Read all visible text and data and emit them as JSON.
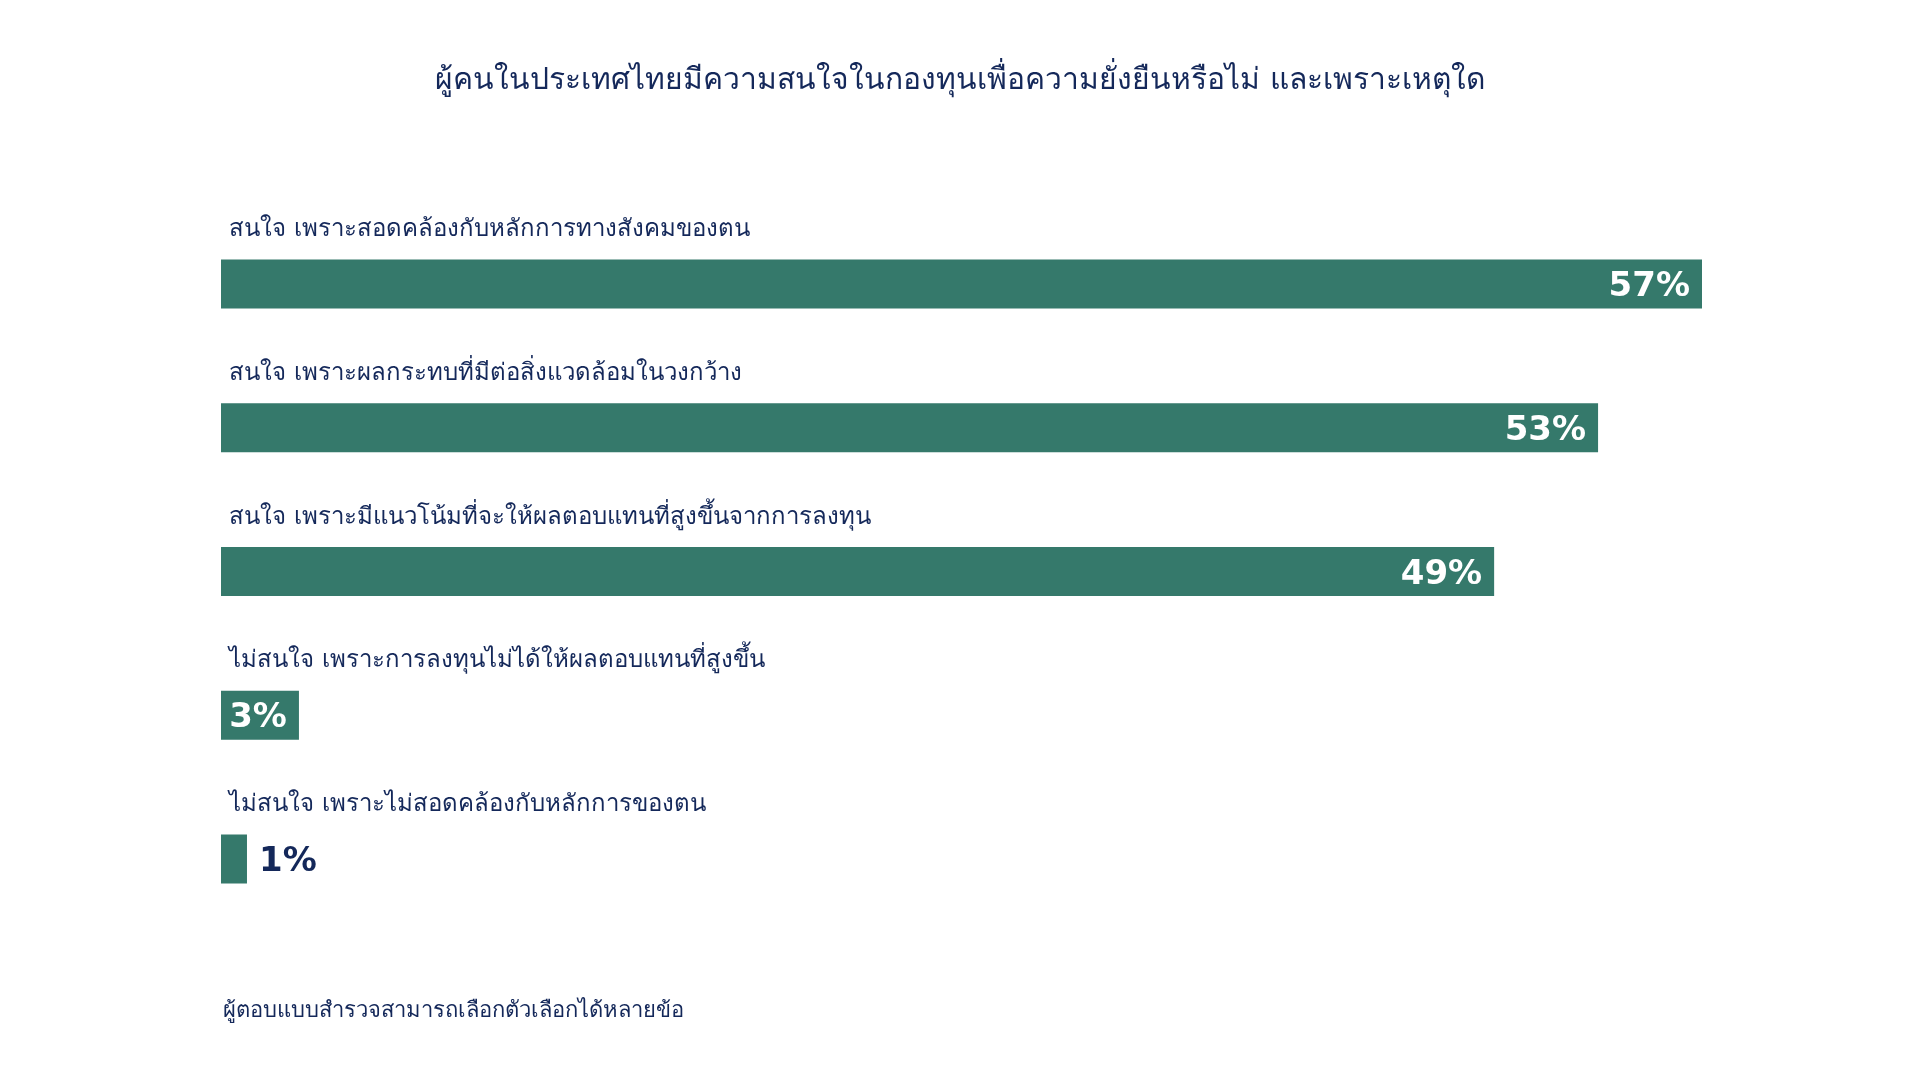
{
  "chart_data": {
    "type": "bar",
    "orientation": "horizontal",
    "title": "ผู้คนในประเทศไทยมีความสนใจในกองทุนเพื่อความยั่งยืนหรือไม่ และเพราะเหตุใด",
    "categories": [
      "สนใจ เพราะสอดคล้องกับหลักการทางสังคมของตน",
      "สนใจ เพราะผลกระทบที่มีต่อสิ่งแวดล้อมในวงกว้าง",
      "สนใจ เพราะมีแนวโน้มที่จะให้ผลตอบแทนที่สูงขึ้นจากการลงทุน",
      "ไม่สนใจ เพราะการลงทุนไม่ได้ให้ผลตอบแทนที่สูงขึ้น",
      "ไม่สนใจ เพราะไม่สอดคล้องกับหลักการของตน"
    ],
    "values": [
      57,
      53,
      49,
      3,
      1
    ],
    "value_labels": [
      "57%",
      "53%",
      "49%",
      "3%",
      "1%"
    ],
    "color": "#35796b",
    "xlim": [
      0,
      57
    ],
    "tick_labels": "y",
    "annotations": [
      "ผู้ตอบแบบสำรวจสามารถเลือกตัวเลือกได้หลายข้อ"
    ]
  }
}
